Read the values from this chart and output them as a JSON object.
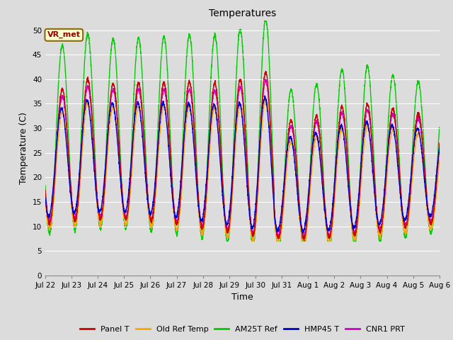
{
  "title": "Temperatures",
  "xlabel": "Time",
  "ylabel": "Temperature (C)",
  "ylim": [
    0,
    52
  ],
  "yticks": [
    0,
    5,
    10,
    15,
    20,
    25,
    30,
    35,
    40,
    45,
    50
  ],
  "background_color": "#dcdcdc",
  "plot_bg_color": "#dcdcdc",
  "series": {
    "Panel T": {
      "color": "#cc0000",
      "lw": 1.0
    },
    "Old Ref Temp": {
      "color": "#ffa500",
      "lw": 1.0
    },
    "AM25T Ref": {
      "color": "#00cc00",
      "lw": 1.0
    },
    "HMP45 T": {
      "color": "#0000cc",
      "lw": 1.0
    },
    "CNR1 PRT": {
      "color": "#cc00cc",
      "lw": 1.0
    }
  },
  "legend_label": "VR_met",
  "n_days": 15.5,
  "grid_color": "#ffffff",
  "tick_labels": [
    "Jul 22",
    "Jul 23",
    "Jul 24",
    "Jul 25",
    "Jul 26",
    "Jul 27",
    "Jul 28",
    "Jul 29",
    "Jul 30",
    "Jul 31",
    "Aug 1",
    "Aug 2",
    "Aug 3",
    "Aug 4",
    "Aug 5",
    "Aug 6"
  ]
}
